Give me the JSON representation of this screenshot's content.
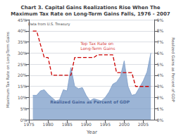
{
  "chart_data": {
    "type": "line",
    "title": "Chart 3. Capital Gains Realizations Rise When The\nMaximum Tax Rate on Long-Term Gains Falls, 1976 - 2007",
    "subtitle": "Data from U.S. Treasury",
    "xlabel": "Year",
    "ylabel": "Maximum Tax Rate on Long-Term Gains",
    "y2label": "Realized Gains as Percent of GDP",
    "x": [
      1976,
      1977,
      1978,
      1979,
      1980,
      1981,
      1982,
      1983,
      1984,
      1985,
      1986,
      1987,
      1988,
      1989,
      1990,
      1991,
      1992,
      1993,
      1994,
      1995,
      1996,
      1997,
      1998,
      1999,
      2000,
      2001,
      2002,
      2003,
      2004,
      2005,
      2006,
      2007
    ],
    "series": [
      {
        "type": "area",
        "axis": "y2",
        "color": "#7b9cc8",
        "values": [
          2.2,
          2.2,
          2.6,
          2.7,
          2.3,
          2.0,
          1.7,
          1.8,
          2.7,
          2.6,
          4.7,
          3.0,
          2.8,
          2.9,
          2.2,
          1.7,
          1.9,
          1.8,
          1.7,
          2.0,
          2.5,
          3.2,
          3.4,
          3.9,
          5.3,
          3.0,
          2.2,
          2.3,
          2.9,
          3.5,
          4.3,
          6.0
        ]
      },
      {
        "type": "line",
        "color": "#cc0000",
        "line_style": "dashed",
        "values": [
          39.9,
          39.9,
          33.8,
          28.0,
          28.0,
          20.0,
          20.0,
          20.0,
          20.0,
          20.0,
          20.0,
          28.0,
          28.0,
          28.0,
          28.0,
          28.0,
          28.0,
          29.2,
          29.2,
          29.2,
          29.2,
          29.2,
          21.2,
          21.2,
          21.2,
          21.2,
          21.2,
          15.0,
          15.0,
          15.0,
          15.0,
          15.0
        ]
      }
    ],
    "annotations": [
      {
        "text": "Top Tax Rate on\nLong-Term Gains",
        "x": 1988.5,
        "y": 31
      },
      {
        "text": "Realized Gains as Percent of GDP",
        "x": 1991,
        "y": 8
      }
    ],
    "xlim": [
      1975,
      2008
    ],
    "xticks": [
      1975,
      1980,
      1985,
      1990,
      1995,
      2000,
      2005
    ],
    "ylim": [
      0,
      45
    ],
    "yticks": [
      {
        "value": 0,
        "label": "0%"
      },
      {
        "value": 5,
        "label": "5%"
      },
      {
        "value": 10,
        "label": "10%"
      },
      {
        "value": 15,
        "label": "15%"
      },
      {
        "value": 20,
        "label": "20%"
      },
      {
        "value": 25,
        "label": "25%"
      },
      {
        "value": 30,
        "label": "30%"
      },
      {
        "value": 35,
        "label": "35%"
      },
      {
        "value": 40,
        "label": "40%"
      },
      {
        "value": 45,
        "label": "45%"
      }
    ],
    "y2lim": [
      0,
      9
    ],
    "y2ticks": [
      {
        "value": 0,
        "label": "0%"
      },
      {
        "value": 1,
        "label": "1%"
      },
      {
        "value": 2,
        "label": "2%"
      },
      {
        "value": 3,
        "label": "3%"
      },
      {
        "value": 4,
        "label": "4%"
      },
      {
        "value": 5,
        "label": "5%"
      },
      {
        "value": 6,
        "label": "6%"
      },
      {
        "value": 7,
        "label": "7%"
      },
      {
        "value": 8,
        "label": "8%"
      },
      {
        "value": 9,
        "label": "9%"
      }
    ],
    "grid": true
  }
}
